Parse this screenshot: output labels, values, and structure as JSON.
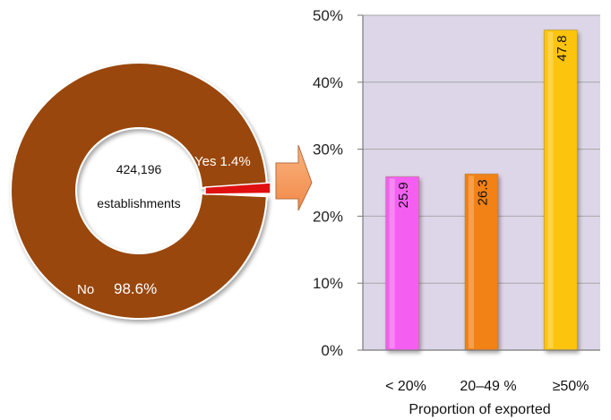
{
  "colors": {
    "donut_no": "#99470a",
    "donut_yes": "#e01010",
    "plot_bg": "#dcd6e8",
    "grid": "#a7a7a7",
    "arrow": "#f79a5a",
    "bars": [
      "#f45ef2",
      "#f28118",
      "#fcc40c"
    ]
  },
  "donut": {
    "center_line1": "424,196",
    "center_line2": "establishments",
    "slices": [
      {
        "label": "No",
        "value_text": "98.6%",
        "value": 98.6
      },
      {
        "label": "Yes",
        "value_text": "1.4%",
        "value": 1.4
      }
    ]
  },
  "chart_data": {
    "type": "bar",
    "categories": [
      "< 20%",
      "20–49 %",
      "≥50%"
    ],
    "values": [
      25.9,
      26.3,
      47.8
    ],
    "value_labels": [
      "25.9",
      "26.3",
      "47.8"
    ],
    "title": "",
    "xlabel": "Proportion of exported",
    "ylabel": "",
    "ylim": [
      0,
      50
    ],
    "yticks": [
      "0%",
      "10%",
      "20%",
      "30%",
      "40%",
      "50%"
    ],
    "grid": true,
    "legend": "none"
  }
}
